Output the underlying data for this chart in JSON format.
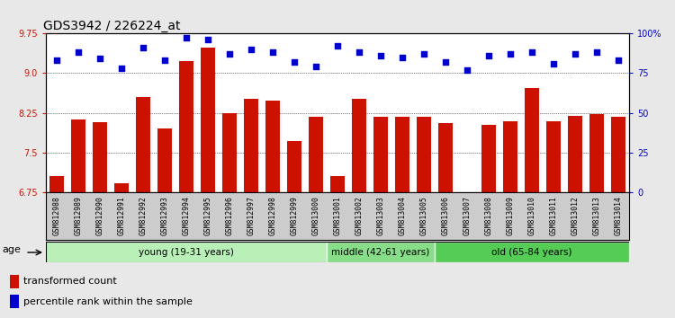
{
  "title": "GDS3942 / 226224_at",
  "samples": [
    "GSM812988",
    "GSM812989",
    "GSM812990",
    "GSM812991",
    "GSM812992",
    "GSM812993",
    "GSM812994",
    "GSM812995",
    "GSM812996",
    "GSM812997",
    "GSM812998",
    "GSM812999",
    "GSM813000",
    "GSM813001",
    "GSM813002",
    "GSM813003",
    "GSM813004",
    "GSM813005",
    "GSM813006",
    "GSM813007",
    "GSM813008",
    "GSM813009",
    "GSM813010",
    "GSM813011",
    "GSM813012",
    "GSM813013",
    "GSM813014"
  ],
  "bar_values": [
    7.05,
    8.12,
    8.07,
    6.92,
    8.55,
    7.95,
    9.22,
    9.48,
    8.25,
    8.52,
    8.48,
    7.72,
    8.18,
    7.05,
    8.52,
    8.17,
    8.17,
    8.17,
    8.05,
    6.76,
    8.03,
    8.1,
    8.72,
    8.1,
    8.2,
    8.22,
    8.18
  ],
  "percentile_values": [
    83,
    88,
    84,
    78,
    91,
    83,
    97,
    96,
    87,
    90,
    88,
    82,
    79,
    92,
    88,
    86,
    85,
    87,
    82,
    77,
    86,
    87,
    88,
    81,
    87,
    88,
    83
  ],
  "groups": [
    {
      "label": "young (19-31 years)",
      "start": 0,
      "end": 13,
      "color": "#b8f0b8"
    },
    {
      "label": "middle (42-61 years)",
      "start": 13,
      "end": 18,
      "color": "#88dd88"
    },
    {
      "label": "old (65-84 years)",
      "start": 18,
      "end": 27,
      "color": "#55cc55"
    }
  ],
  "ylim_left": [
    6.75,
    9.75
  ],
  "ylim_right": [
    0,
    100
  ],
  "yticks_left": [
    6.75,
    7.5,
    8.25,
    9.0,
    9.75
  ],
  "yticks_right": [
    0,
    25,
    50,
    75,
    100
  ],
  "bar_color": "#cc1100",
  "dot_color": "#0000cc",
  "background_color": "#e8e8e8",
  "plot_bg_color": "#ffffff",
  "xtick_bg_color": "#cccccc",
  "title_fontsize": 10,
  "tick_fontsize": 7,
  "label_fontsize": 7,
  "legend_items": [
    "transformed count",
    "percentile rank within the sample"
  ],
  "legend_colors": [
    "#cc1100",
    "#0000cc"
  ]
}
